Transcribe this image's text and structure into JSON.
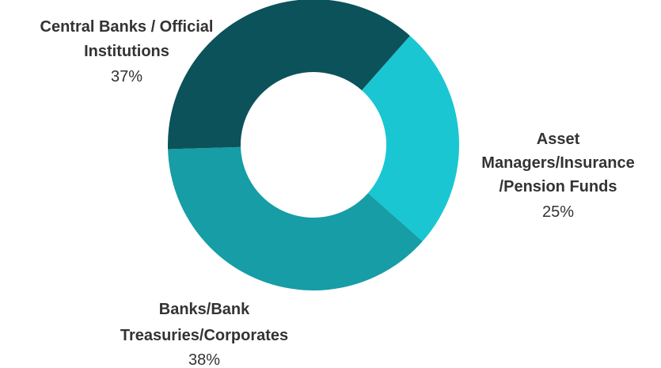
{
  "chart_data": {
    "type": "pie",
    "donut": true,
    "title": "",
    "legend": "none",
    "slices": [
      {
        "name_lines": [
          "Asset",
          "Managers/Insurance",
          "/Pension Funds"
        ],
        "pct_label": "25%",
        "value": 25,
        "color": "#1ac6d2"
      },
      {
        "name_lines": [
          "Banks/Bank",
          "Treasuries/Corporates"
        ],
        "pct_label": "38%",
        "value": 38,
        "color": "#169da6"
      },
      {
        "name_lines": [
          "Central Banks / Official",
          "Institutions"
        ],
        "pct_label": "37%",
        "value": 37,
        "color": "#0c525a"
      }
    ]
  }
}
